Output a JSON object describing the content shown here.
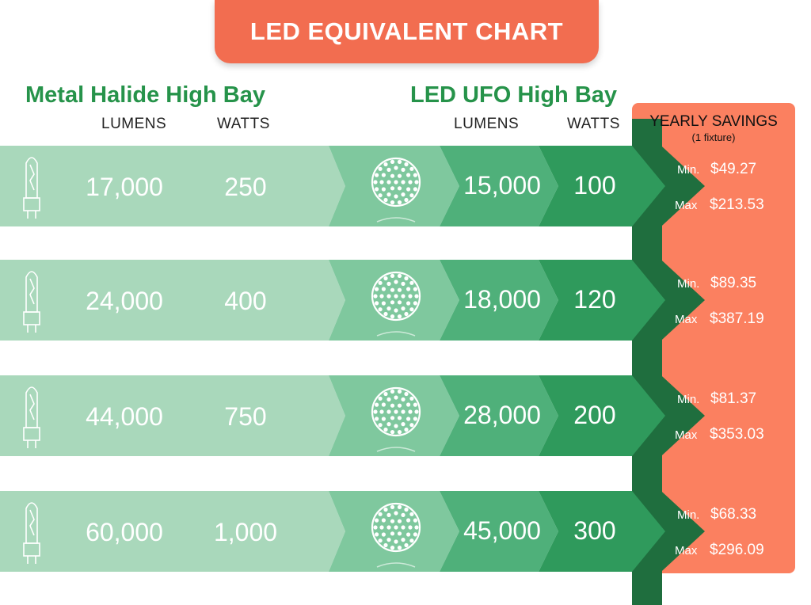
{
  "title": "LED EQUIVALENT CHART",
  "left_header": "Metal Halide High Bay",
  "right_header": "LED UFO High Bay",
  "columns": {
    "lumens": "LUMENS",
    "watts": "WATTS"
  },
  "savings_header": {
    "title": "YEARLY SAVINGS",
    "subtitle": "(1 fixture)"
  },
  "colors": {
    "title_bg": "#f26d50",
    "header_green": "#26934a",
    "mh_band": "#a9d8bb",
    "led_band_light": "#7fc89e",
    "led_lumens": "#4fb07a",
    "led_watts": "#2f9a5c",
    "arrow_dark": "#1f6e3e",
    "savings_bg": "#fb8060"
  },
  "icons": {
    "metal_halide": "metal-halide-bulb-icon",
    "led": "led-ufo-icon"
  },
  "chart_data": {
    "type": "table",
    "title": "LED EQUIVALENT CHART",
    "columns": [
      "Metal Halide Lumens",
      "Metal Halide Watts",
      "LED UFO Lumens",
      "LED UFO Watts",
      "Yearly Savings Min",
      "Yearly Savings Max"
    ],
    "rows": [
      {
        "mh_lumens": "17,000",
        "mh_watts": "250",
        "led_lumens": "15,000",
        "led_watts": "100",
        "min_label": "Min.",
        "min": "$49.27",
        "max_label": "Max",
        "max": "$213.53"
      },
      {
        "mh_lumens": "24,000",
        "mh_watts": "400",
        "led_lumens": "18,000",
        "led_watts": "120",
        "min_label": "Min.",
        "min": "$89.35",
        "max_label": "Max",
        "max": "$387.19"
      },
      {
        "mh_lumens": "44,000",
        "mh_watts": "750",
        "led_lumens": "28,000",
        "led_watts": "200",
        "min_label": "Min.",
        "min": "$81.37",
        "max_label": "Max",
        "max": "$353.03"
      },
      {
        "mh_lumens": "60,000",
        "mh_watts": "1,000",
        "led_lumens": "45,000",
        "led_watts": "300",
        "min_label": "Min.",
        "min": "$68.33",
        "max_label": "Max",
        "max": "$296.09"
      }
    ]
  }
}
